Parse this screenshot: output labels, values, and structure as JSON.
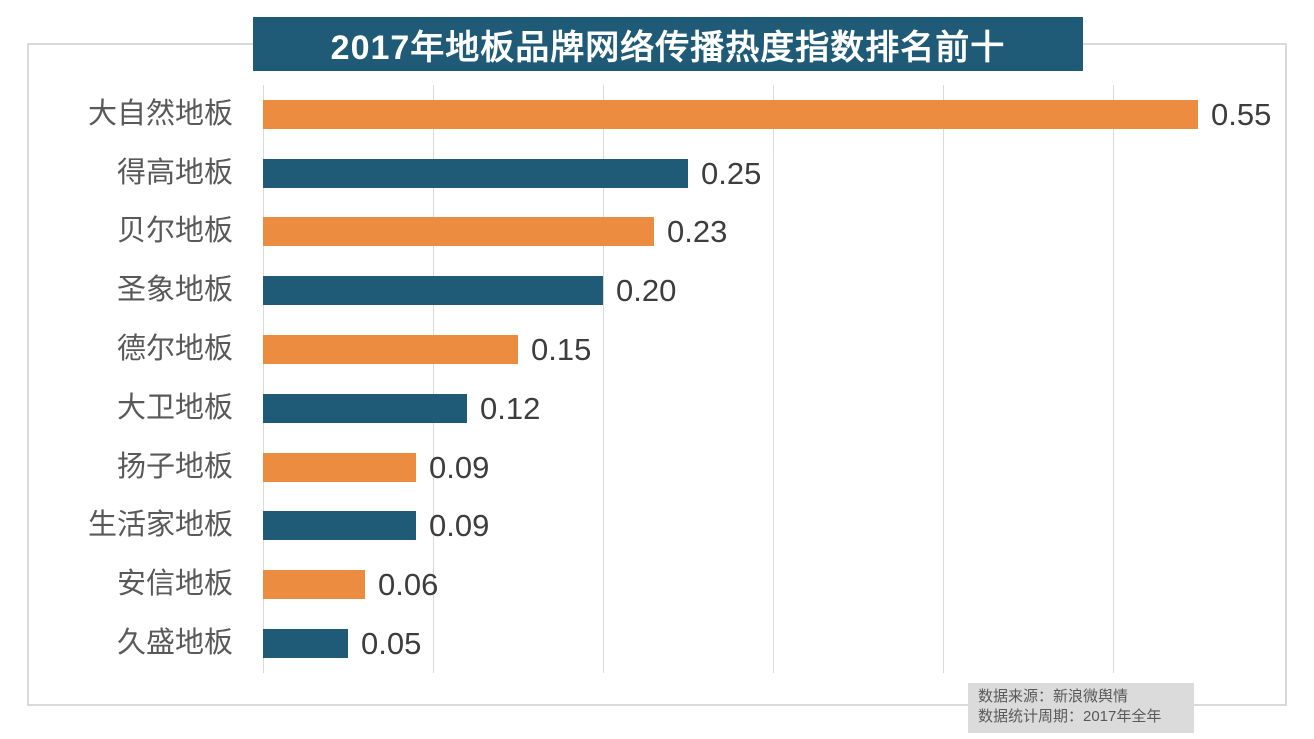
{
  "title": "2017年地板品牌网络传播热度指数排名前十",
  "colors": {
    "title_bg": "#1f5b76",
    "title_text": "#ffffff",
    "bar_orange": "#ec8c41",
    "bar_teal": "#1f5b76",
    "gridline": "#dadada",
    "frame_border": "#d9d9d9",
    "category_label": "#595959",
    "value_label": "#3d3d3d",
    "footer_bg": "#dbdbdb",
    "footer_text": "#595959",
    "background": "#ffffff"
  },
  "chart_data": {
    "type": "bar",
    "orientation": "horizontal",
    "title": "2017年地板品牌网络传播热度指数排名前十",
    "categories": [
      "大自然地板",
      "得高地板",
      "贝尔地板",
      "圣象地板",
      "德尔地板",
      "大卫地板",
      "扬子地板",
      "生活家地板",
      "安信地板",
      "久盛地板"
    ],
    "values": [
      0.55,
      0.25,
      0.23,
      0.2,
      0.15,
      0.12,
      0.09,
      0.09,
      0.06,
      0.05
    ],
    "value_labels": [
      "0.55",
      "0.25",
      "0.23",
      "0.20",
      "0.15",
      "0.12",
      "0.09",
      "0.09",
      "0.06",
      "0.05"
    ],
    "bar_colors": [
      "#ec8c41",
      "#1f5b76",
      "#ec8c41",
      "#1f5b76",
      "#ec8c41",
      "#1f5b76",
      "#ec8c41",
      "#1f5b76",
      "#ec8c41",
      "#1f5b76"
    ],
    "xlabel": "",
    "ylabel": "",
    "xlim": [
      0,
      0.6
    ],
    "grid_step": 0.1,
    "grid": "vertical",
    "legend": "none",
    "value_labels_position": "end-of-bar"
  },
  "footer": {
    "line1": "数据来源：新浪微舆情",
    "line2": "数据统计周期：2017年全年"
  }
}
